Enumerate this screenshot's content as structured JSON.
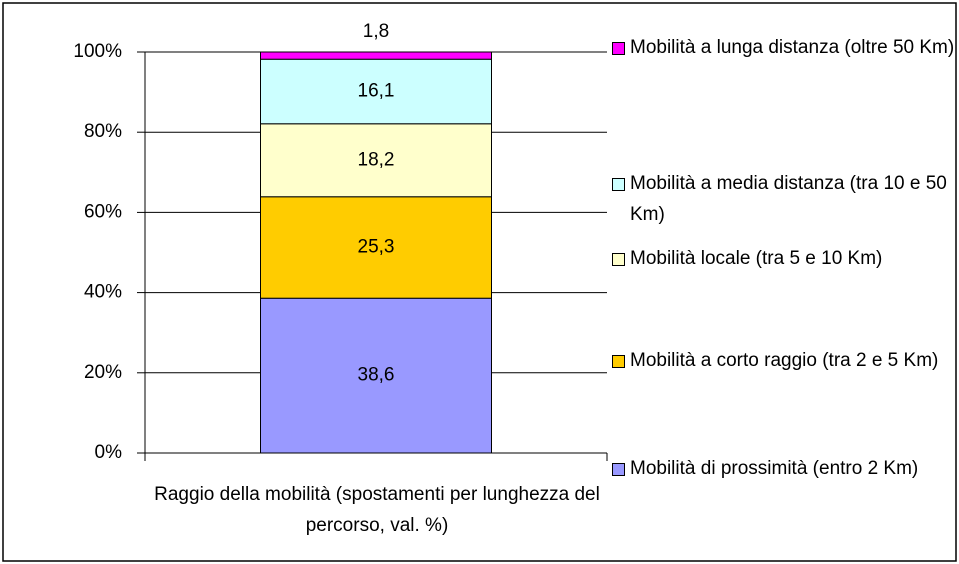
{
  "chart_data": {
    "type": "stacked_bar",
    "categories": [
      "Raggio della mobilità (spostamenti per lunghezza del percorso, val. %)"
    ],
    "series": [
      {
        "name": "Mobilità di prossimità (entro 2 Km)",
        "color": "#9999ff",
        "values": [
          38.6
        ],
        "value_labels": [
          "38,6"
        ]
      },
      {
        "name": "Mobilità a corto raggio (tra 2 e 5 Km)",
        "color": "#ffcc00",
        "values": [
          25.3
        ],
        "value_labels": [
          "25,3"
        ]
      },
      {
        "name": "Mobilità locale (tra 5 e 10 Km)",
        "color": "#ffffcc",
        "values": [
          18.2
        ],
        "value_labels": [
          "18,2"
        ]
      },
      {
        "name": "Mobilità a media distanza (tra 10 e 50 Km)",
        "color": "#ccffff",
        "values": [
          16.1
        ],
        "value_labels": [
          "16,1"
        ]
      },
      {
        "name": "Mobilità a lunga distanza (oltre 50 Km)",
        "color": "#ff00ff",
        "values": [
          1.8
        ],
        "value_labels": [
          "1,8"
        ]
      }
    ],
    "ylim": [
      0,
      100
    ],
    "yticks": [
      {
        "value": 0,
        "label": "0%"
      },
      {
        "value": 20,
        "label": "20%"
      },
      {
        "value": 40,
        "label": "40%"
      },
      {
        "value": 60,
        "label": "60%"
      },
      {
        "value": 80,
        "label": "80%"
      },
      {
        "value": 100,
        "label": "100%"
      }
    ],
    "grid": true,
    "legend": "right"
  }
}
